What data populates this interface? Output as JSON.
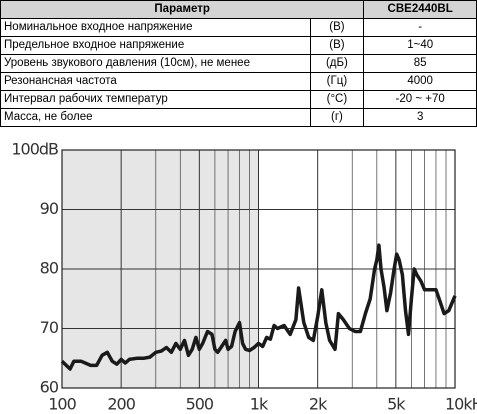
{
  "table": {
    "header": [
      "Параметр",
      "CBE2440BL"
    ],
    "rows": [
      [
        "Номинальное входное напряжение",
        "(В)",
        "-"
      ],
      [
        "Предельное входное напряжение",
        "(В)",
        "1~40"
      ],
      [
        "Уровень звукового давления (10см), не менее",
        "(дБ)",
        "85"
      ],
      [
        "Резонансная частота",
        "(Гц)",
        "4000"
      ],
      [
        "Интервал рабочих температур",
        "(°С)",
        "-20 ~ +70"
      ],
      [
        "Масса, не более",
        "(г)",
        "3"
      ]
    ]
  },
  "chart_data": {
    "type": "line",
    "xscale": "log",
    "grid": true,
    "x": [
      100,
      110,
      115,
      125,
      140,
      150,
      160,
      170,
      180,
      190,
      200,
      210,
      220,
      240,
      260,
      280,
      300,
      320,
      340,
      360,
      380,
      400,
      420,
      440,
      460,
      480,
      500,
      520,
      550,
      580,
      600,
      620,
      650,
      680,
      700,
      730,
      760,
      800,
      830,
      860,
      900,
      950,
      1000,
      1050,
      1100,
      1150,
      1200,
      1250,
      1350,
      1450,
      1550,
      1600,
      1700,
      1800,
      1900,
      2000,
      2100,
      2200,
      2300,
      2450,
      2550,
      2700,
      2900,
      3100,
      3300,
      3500,
      3700,
      3900,
      4000,
      4100,
      4200,
      4350,
      4500,
      4700,
      4900,
      5050,
      5200,
      5400,
      5600,
      5800,
      6000,
      6200,
      6400,
      6700,
      7000,
      7500,
      8000,
      8400,
      8800,
      9300,
      10000
    ],
    "series": [
      {
        "color": "#1a1a1a",
        "values": [
          64.5,
          63.2,
          64.5,
          64.5,
          63.8,
          63.8,
          65.5,
          66,
          64.5,
          64,
          64.8,
          64.2,
          64.8,
          65,
          65,
          65.2,
          66,
          66.2,
          66.8,
          66,
          67.5,
          66.5,
          68,
          65.5,
          66.5,
          68.5,
          66.5,
          67.5,
          69.5,
          69,
          66.5,
          66,
          67,
          68,
          66.5,
          67,
          69.5,
          71,
          67.5,
          66.5,
          66.3,
          66.8,
          67.5,
          67,
          68.5,
          68.2,
          70.5,
          70,
          70.5,
          69,
          71.5,
          76.8,
          71,
          68.5,
          68,
          72,
          76.5,
          71,
          68,
          66.5,
          72.5,
          71.5,
          70,
          69.5,
          69.5,
          72.5,
          75,
          80,
          81.5,
          84,
          80,
          77,
          73,
          76,
          80,
          82.5,
          81.5,
          79,
          73,
          69,
          75,
          80,
          79,
          78,
          76.5,
          76.5,
          76.5,
          74.5,
          72.5,
          73,
          75.5
        ]
      }
    ],
    "xlim": [
      100,
      10000
    ],
    "ylim": [
      60,
      100
    ],
    "xticks": [
      100,
      200,
      500,
      {
        "value": 1000,
        "label": "1k"
      },
      {
        "value": 2000,
        "label": "2k"
      },
      {
        "value": 5000,
        "label": "5k"
      },
      {
        "value": 10000,
        "label": "10kHz"
      }
    ],
    "xgrid": [
      300,
      400,
      600,
      700,
      800,
      900,
      3000,
      4000,
      6000,
      7000,
      8000,
      9000
    ],
    "yticks": [
      60,
      70,
      80,
      90,
      {
        "value": 100,
        "label": "100dB"
      }
    ]
  }
}
